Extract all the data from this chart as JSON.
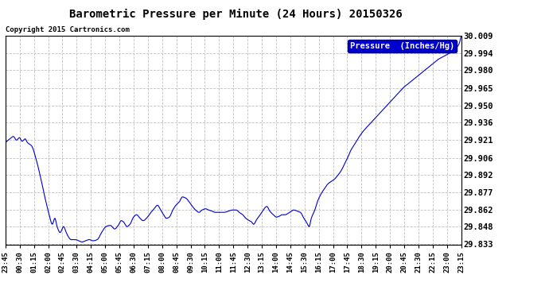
{
  "title": "Barometric Pressure per Minute (24 Hours) 20150326",
  "copyright": "Copyright 2015 Cartronics.com",
  "legend_label": "Pressure  (Inches/Hg)",
  "line_color": "#0000cc",
  "background_color": "#ffffff",
  "grid_color": "#c0c0c0",
  "ylim": [
    29.833,
    30.009
  ],
  "yticks": [
    29.833,
    29.848,
    29.862,
    29.877,
    29.892,
    29.906,
    29.921,
    29.936,
    29.95,
    29.965,
    29.98,
    29.994,
    30.009
  ],
  "xtick_labels": [
    "23:45",
    "00:30",
    "01:15",
    "02:00",
    "02:45",
    "03:30",
    "04:15",
    "05:00",
    "05:45",
    "06:30",
    "07:15",
    "08:00",
    "08:45",
    "09:30",
    "10:15",
    "11:00",
    "11:45",
    "12:30",
    "13:15",
    "14:00",
    "14:45",
    "15:30",
    "16:15",
    "17:00",
    "17:45",
    "18:30",
    "19:15",
    "20:00",
    "20:45",
    "21:30",
    "22:15",
    "23:00",
    "23:15"
  ],
  "keypoints": [
    [
      0,
      29.919
    ],
    [
      10,
      29.922
    ],
    [
      18,
      29.924
    ],
    [
      25,
      29.921
    ],
    [
      32,
      29.923
    ],
    [
      38,
      29.92
    ],
    [
      45,
      29.922
    ],
    [
      50,
      29.919
    ],
    [
      60,
      29.916
    ],
    [
      70,
      29.905
    ],
    [
      80,
      29.89
    ],
    [
      90,
      29.873
    ],
    [
      100,
      29.858
    ],
    [
      107,
      29.85
    ],
    [
      113,
      29.855
    ],
    [
      118,
      29.848
    ],
    [
      125,
      29.843
    ],
    [
      133,
      29.848
    ],
    [
      138,
      29.844
    ],
    [
      143,
      29.84
    ],
    [
      150,
      29.837
    ],
    [
      160,
      29.837
    ],
    [
      168,
      29.836
    ],
    [
      175,
      29.835
    ],
    [
      183,
      29.836
    ],
    [
      192,
      29.837
    ],
    [
      200,
      29.836
    ],
    [
      210,
      29.837
    ],
    [
      220,
      29.843
    ],
    [
      230,
      29.848
    ],
    [
      240,
      29.849
    ],
    [
      250,
      29.846
    ],
    [
      258,
      29.849
    ],
    [
      265,
      29.853
    ],
    [
      270,
      29.852
    ],
    [
      278,
      29.848
    ],
    [
      285,
      29.85
    ],
    [
      293,
      29.856
    ],
    [
      300,
      29.858
    ],
    [
      308,
      29.855
    ],
    [
      315,
      29.853
    ],
    [
      325,
      29.856
    ],
    [
      333,
      29.86
    ],
    [
      340,
      29.863
    ],
    [
      348,
      29.866
    ],
    [
      355,
      29.862
    ],
    [
      362,
      29.858
    ],
    [
      368,
      29.855
    ],
    [
      375,
      29.856
    ],
    [
      383,
      29.862
    ],
    [
      390,
      29.866
    ],
    [
      398,
      29.869
    ],
    [
      405,
      29.873
    ],
    [
      413,
      29.872
    ],
    [
      420,
      29.869
    ],
    [
      428,
      29.865
    ],
    [
      435,
      29.862
    ],
    [
      443,
      29.86
    ],
    [
      450,
      29.862
    ],
    [
      458,
      29.863
    ],
    [
      465,
      29.862
    ],
    [
      473,
      29.861
    ],
    [
      480,
      29.86
    ],
    [
      490,
      29.86
    ],
    [
      500,
      29.86
    ],
    [
      510,
      29.861
    ],
    [
      520,
      29.862
    ],
    [
      528,
      29.862
    ],
    [
      535,
      29.86
    ],
    [
      543,
      29.858
    ],
    [
      550,
      29.855
    ],
    [
      558,
      29.853
    ],
    [
      563,
      29.852
    ],
    [
      568,
      29.85
    ],
    [
      575,
      29.854
    ],
    [
      583,
      29.858
    ],
    [
      590,
      29.862
    ],
    [
      598,
      29.865
    ],
    [
      605,
      29.861
    ],
    [
      613,
      29.858
    ],
    [
      620,
      29.856
    ],
    [
      628,
      29.857
    ],
    [
      633,
      29.858
    ],
    [
      640,
      29.858
    ],
    [
      650,
      29.86
    ],
    [
      660,
      29.862
    ],
    [
      668,
      29.861
    ],
    [
      675,
      29.86
    ],
    [
      683,
      29.855
    ],
    [
      690,
      29.851
    ],
    [
      695,
      29.848
    ],
    [
      700,
      29.855
    ],
    [
      708,
      29.862
    ],
    [
      715,
      29.87
    ],
    [
      723,
      29.876
    ],
    [
      730,
      29.88
    ],
    [
      738,
      29.884
    ],
    [
      745,
      29.886
    ],
    [
      753,
      29.888
    ],
    [
      760,
      29.891
    ],
    [
      768,
      29.895
    ],
    [
      775,
      29.9
    ],
    [
      783,
      29.906
    ],
    [
      790,
      29.912
    ],
    [
      800,
      29.918
    ],
    [
      810,
      29.924
    ],
    [
      820,
      29.929
    ],
    [
      830,
      29.933
    ],
    [
      840,
      29.937
    ],
    [
      850,
      29.941
    ],
    [
      860,
      29.945
    ],
    [
      870,
      29.949
    ],
    [
      880,
      29.953
    ],
    [
      890,
      29.957
    ],
    [
      900,
      29.961
    ],
    [
      910,
      29.965
    ],
    [
      920,
      29.968
    ],
    [
      930,
      29.971
    ],
    [
      940,
      29.974
    ],
    [
      950,
      29.977
    ],
    [
      960,
      29.98
    ],
    [
      970,
      29.983
    ],
    [
      980,
      29.986
    ],
    [
      990,
      29.989
    ],
    [
      1000,
      29.991
    ],
    [
      1010,
      29.993
    ],
    [
      1020,
      29.995
    ],
    [
      1030,
      29.998
    ],
    [
      1038,
      30.002
    ],
    [
      1043,
      30.009
    ]
  ]
}
